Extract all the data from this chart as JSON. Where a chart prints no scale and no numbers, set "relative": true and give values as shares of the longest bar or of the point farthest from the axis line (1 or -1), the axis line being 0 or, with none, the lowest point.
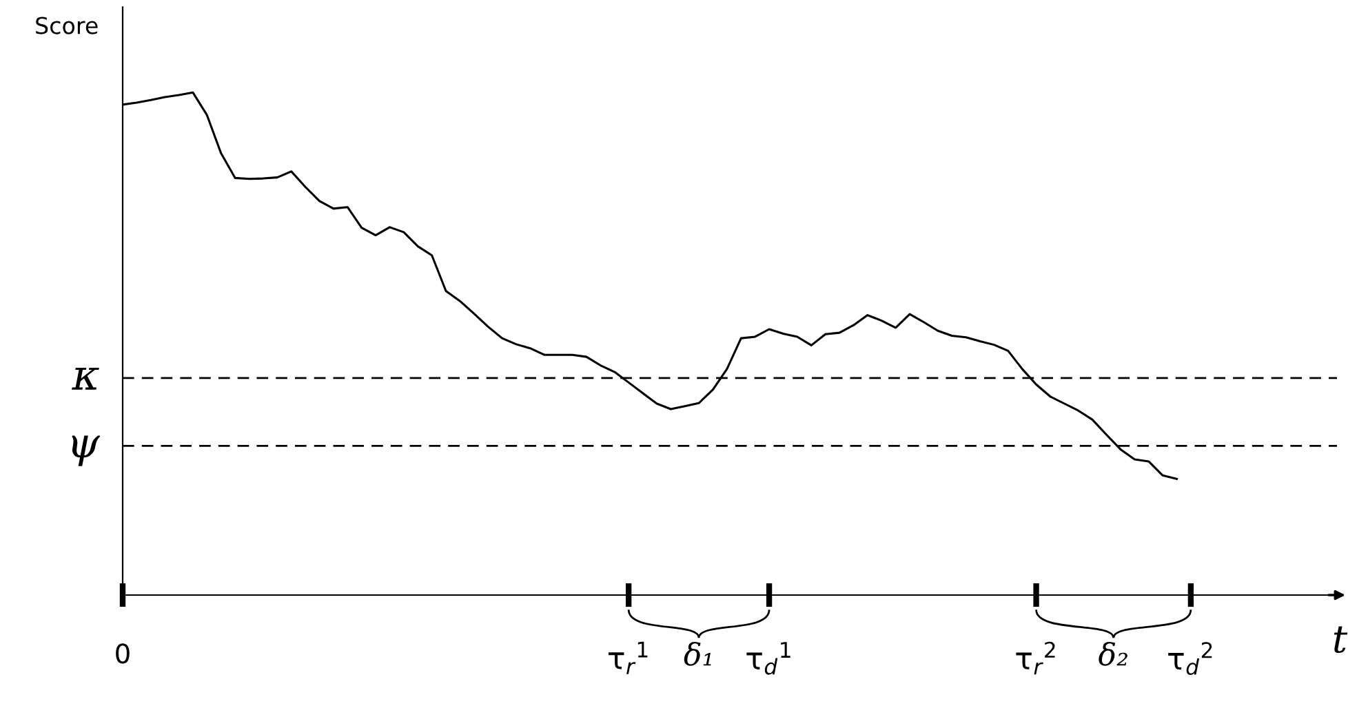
{
  "chart_data": {
    "type": "line",
    "relative": true,
    "ylabel": "Score",
    "xlabel": "t",
    "categories": [
      "0",
      null,
      null,
      null,
      null,
      null,
      null,
      null,
      null,
      null,
      null,
      null,
      null,
      null,
      null,
      null,
      null,
      null,
      null,
      null,
      null,
      null,
      null,
      null,
      null,
      null,
      null,
      null,
      null,
      null,
      null,
      null,
      null,
      null,
      null,
      null,
      "τ$_{r}$$^{1}$",
      null,
      null,
      null,
      null,
      null,
      null,
      null,
      null,
      null,
      "τ$_{d}$$^{1}$",
      null,
      null,
      null,
      null,
      null,
      null,
      null,
      null,
      null,
      null,
      null,
      null,
      null,
      null,
      null,
      null,
      null,
      null,
      "τ$_{r}$$^{2}$",
      null,
      null,
      null,
      null,
      null,
      null,
      null,
      null,
      null,
      null,
      "τ$_{d}$$^{2}$",
      null,
      null,
      null,
      null,
      null,
      null,
      null,
      null,
      null,
      null
    ],
    "series": [
      {
        "color": "#000000",
        "values": [
          0.976,
          0.98,
          0.985,
          0.991,
          0.995,
          1.0,
          0.955,
          0.879,
          0.83,
          0.828,
          0.829,
          0.831,
          0.843,
          0.812,
          0.784,
          0.769,
          0.772,
          0.731,
          0.716,
          0.732,
          0.722,
          0.694,
          0.676,
          0.605,
          0.585,
          0.56,
          0.534,
          0.511,
          0.499,
          0.491,
          0.478,
          0.478,
          0.478,
          0.474,
          0.457,
          0.444,
          0.423,
          0.402,
          0.381,
          0.37,
          0.376,
          0.382,
          0.409,
          0.45,
          0.511,
          0.514,
          0.529,
          0.52,
          0.514,
          0.497,
          0.519,
          0.522,
          0.537,
          0.557,
          0.546,
          0.532,
          0.559,
          0.543,
          0.526,
          0.516,
          0.513,
          0.505,
          0.498,
          0.486,
          0.45,
          0.419,
          0.395,
          0.381,
          0.367,
          0.349,
          0.319,
          0.29,
          0.27,
          0.266,
          0.238,
          0.231,
          null,
          null,
          null,
          null,
          null,
          null,
          null,
          null,
          null,
          null,
          null
        ]
      }
    ],
    "ref_lines": [
      {
        "axis": "y",
        "value": 0.432,
        "label": "κ",
        "color": "#000000",
        "line_style": "dashed"
      },
      {
        "axis": "y",
        "value": 0.297,
        "label": "ψ",
        "color": "#000000",
        "line_style": "dashed"
      }
    ],
    "annotations": [
      "δ₁",
      "δ₂"
    ],
    "grid": false,
    "legend": false,
    "line_style": "solid",
    "marker": "none"
  }
}
